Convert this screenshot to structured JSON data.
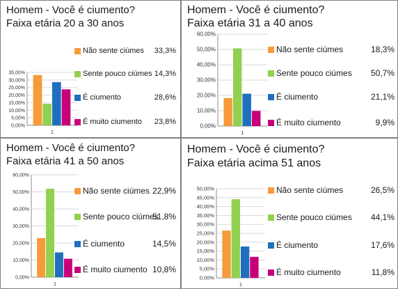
{
  "colors": {
    "nao": "#f79a3a",
    "pouco": "#92d050",
    "ciumento": "#1f6fbe",
    "muito": "#c7007a"
  },
  "chart_data": [
    {
      "type": "bar",
      "title": "Homem - Você é ciumento?",
      "subtitle": "Faixa etária 20 a 30 anos",
      "categories": [
        "1"
      ],
      "ylim": [
        0,
        35
      ],
      "yticks": [
        "0,00%",
        "5,00%",
        "10,00%",
        "15,00%",
        "20,00%",
        "25,00%",
        "30,00%",
        "35,00%"
      ],
      "series": [
        {
          "name": "Não sente ciúmes",
          "value": 33.3,
          "label": "33,3%",
          "color": "#f79a3a"
        },
        {
          "name": "Sente pouco ciúmes",
          "value": 14.3,
          "label": "14,3%",
          "color": "#92d050"
        },
        {
          "name": "É ciumento",
          "value": 28.6,
          "label": "28,6%",
          "color": "#1f6fbe"
        },
        {
          "name": "É muito ciumento",
          "value": 23.8,
          "label": "23,8%",
          "color": "#c7007a"
        }
      ]
    },
    {
      "type": "bar",
      "title": "Homem - Você é ciumento?",
      "subtitle": "Faixa etária 31 a 40 anos",
      "categories": [
        "1"
      ],
      "ylim": [
        0,
        60
      ],
      "yticks": [
        "0,00%",
        "10,00%",
        "20,00%",
        "30,00%",
        "40,00%",
        "50,00%",
        "60,00%"
      ],
      "series": [
        {
          "name": "Não sente ciúmes",
          "value": 18.3,
          "label": "18,3%",
          "color": "#f79a3a"
        },
        {
          "name": "Sente pouco ciúmes",
          "value": 50.7,
          "label": "50,7%",
          "color": "#92d050"
        },
        {
          "name": "É ciumento",
          "value": 21.1,
          "label": "21,1%",
          "color": "#1f6fbe"
        },
        {
          "name": "É muito ciumento",
          "value": 9.9,
          "label": "9,9%",
          "color": "#c7007a"
        }
      ]
    },
    {
      "type": "bar",
      "title": "Homem - Você é ciumento?",
      "subtitle": "Faixa etária 41 a 50 anos",
      "categories": [
        "1"
      ],
      "ylim": [
        0,
        60
      ],
      "yticks": [
        "0,00%",
        "10,00%",
        "20,00%",
        "30,00%",
        "40,00%",
        "50,00%",
        "60,00%"
      ],
      "series": [
        {
          "name": "Não sente ciúmes",
          "value": 22.9,
          "label": "22,9%",
          "color": "#f79a3a"
        },
        {
          "name": "Sente pouco ciúmes",
          "value": 51.8,
          "label": "51,8%",
          "color": "#92d050"
        },
        {
          "name": "É ciumento",
          "value": 14.5,
          "label": "14,5%",
          "color": "#1f6fbe"
        },
        {
          "name": "É muito ciumento",
          "value": 10.8,
          "label": "10,8%",
          "color": "#c7007a"
        }
      ]
    },
    {
      "type": "bar",
      "title": "Homem - Você é ciumento?",
      "subtitle": "Faixa etária acima 51 anos",
      "categories": [
        "1"
      ],
      "ylim": [
        0,
        50
      ],
      "yticks": [
        "0,00%",
        "5,00%",
        "10,00%",
        "15,00%",
        "20,00%",
        "25,00%",
        "30,00%",
        "35,00%",
        "40,00%",
        "45,00%",
        "50,00%"
      ],
      "series": [
        {
          "name": "Não sente ciúmes",
          "value": 26.5,
          "label": "26,5%",
          "color": "#f79a3a"
        },
        {
          "name": "Sente pouco ciúmes",
          "value": 44.1,
          "label": "44,1%",
          "color": "#92d050"
        },
        {
          "name": "É ciumento",
          "value": 17.6,
          "label": "17,6%",
          "color": "#1f6fbe"
        },
        {
          "name": "É muito ciumento",
          "value": 11.8,
          "label": "11,8%",
          "color": "#c7007a"
        }
      ]
    }
  ]
}
